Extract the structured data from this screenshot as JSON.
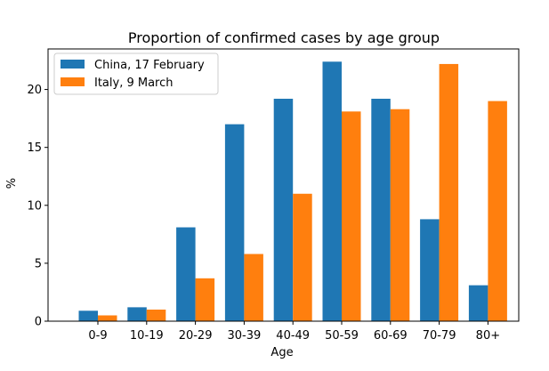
{
  "chart_data": {
    "type": "bar",
    "title": "Proportion of confirmed cases by age group",
    "xlabel": "Age",
    "ylabel": "%",
    "categories": [
      "0-9",
      "10-19",
      "20-29",
      "30-39",
      "40-49",
      "50-59",
      "60-69",
      "70-79",
      "80+"
    ],
    "series": [
      {
        "name": "China, 17 February",
        "color": "#1f77b4",
        "values": [
          0.9,
          1.2,
          8.1,
          17.0,
          19.2,
          22.4,
          19.2,
          8.8,
          3.1
        ]
      },
      {
        "name": "Italy, 9 March",
        "color": "#ff7f0e",
        "values": [
          0.5,
          1.0,
          3.7,
          5.8,
          11.0,
          18.1,
          18.3,
          22.2,
          19.0
        ]
      }
    ],
    "yticks": [
      0,
      5,
      10,
      15,
      20
    ],
    "ylim": [
      0,
      23.5
    ],
    "grid": false,
    "legend_position": "top-left"
  }
}
